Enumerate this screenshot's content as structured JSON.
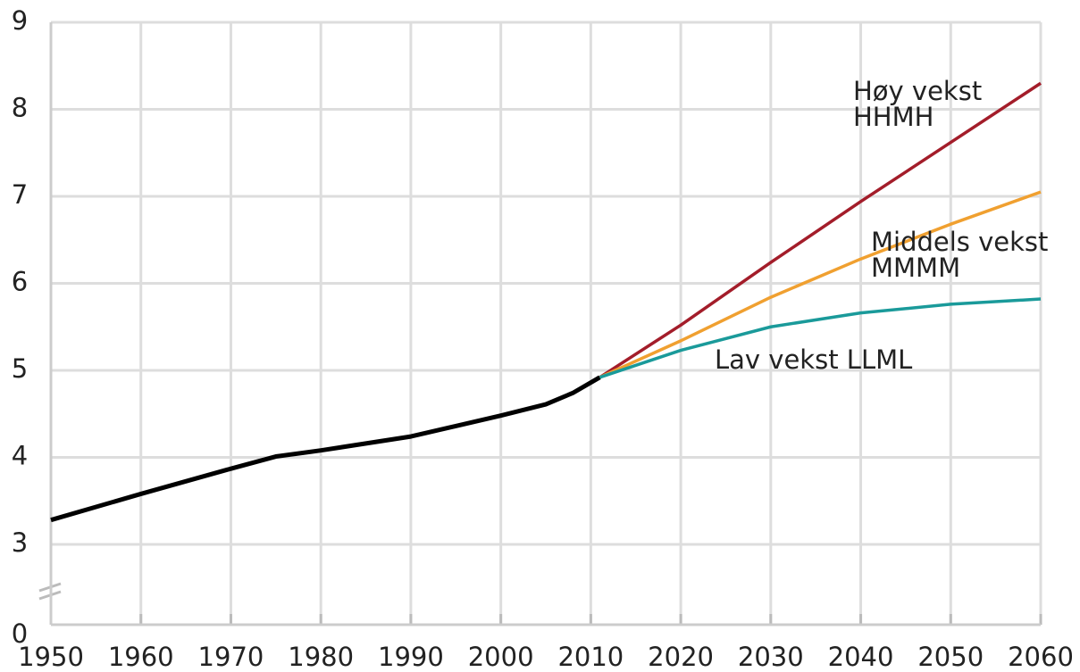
{
  "chart_data": {
    "type": "line",
    "x": [
      1950,
      1960,
      1970,
      1975,
      1980,
      1990,
      2000,
      2005,
      2008,
      2011,
      2020,
      2030,
      2040,
      2050,
      2060
    ],
    "series": [
      {
        "color": "#000000",
        "values": [
          3.28,
          3.58,
          3.87,
          4.01,
          4.08,
          4.24,
          4.48,
          4.61,
          4.74,
          4.92,
          null,
          null,
          null,
          null,
          null
        ]
      },
      {
        "color": "#a31d2a",
        "values": [
          null,
          null,
          null,
          null,
          null,
          null,
          null,
          null,
          null,
          4.92,
          5.52,
          6.24,
          6.94,
          7.62,
          8.3
        ]
      },
      {
        "color": "#f0a030",
        "values": [
          null,
          null,
          null,
          null,
          null,
          null,
          null,
          null,
          null,
          4.92,
          5.34,
          5.84,
          6.28,
          6.68,
          7.05
        ]
      },
      {
        "color": "#1a9a9a",
        "values": [
          null,
          null,
          null,
          null,
          null,
          null,
          null,
          null,
          null,
          4.92,
          5.23,
          5.5,
          5.66,
          5.76,
          5.82
        ]
      }
    ],
    "annotations": [
      "Høy vekst",
      "HHMH",
      "Middels vekst",
      "MMMM",
      "Lav vekst LLML"
    ],
    "xlim": [
      1950,
      2060
    ],
    "xticks": [
      1950,
      1960,
      1970,
      1980,
      1990,
      2000,
      2010,
      2020,
      2030,
      2040,
      2050,
      2060
    ],
    "ylim": [
      0,
      9
    ],
    "y_axis_break": [
      0,
      3
    ],
    "yticks": [
      0,
      3,
      4,
      5,
      6,
      7,
      8,
      9
    ],
    "grid": true
  }
}
